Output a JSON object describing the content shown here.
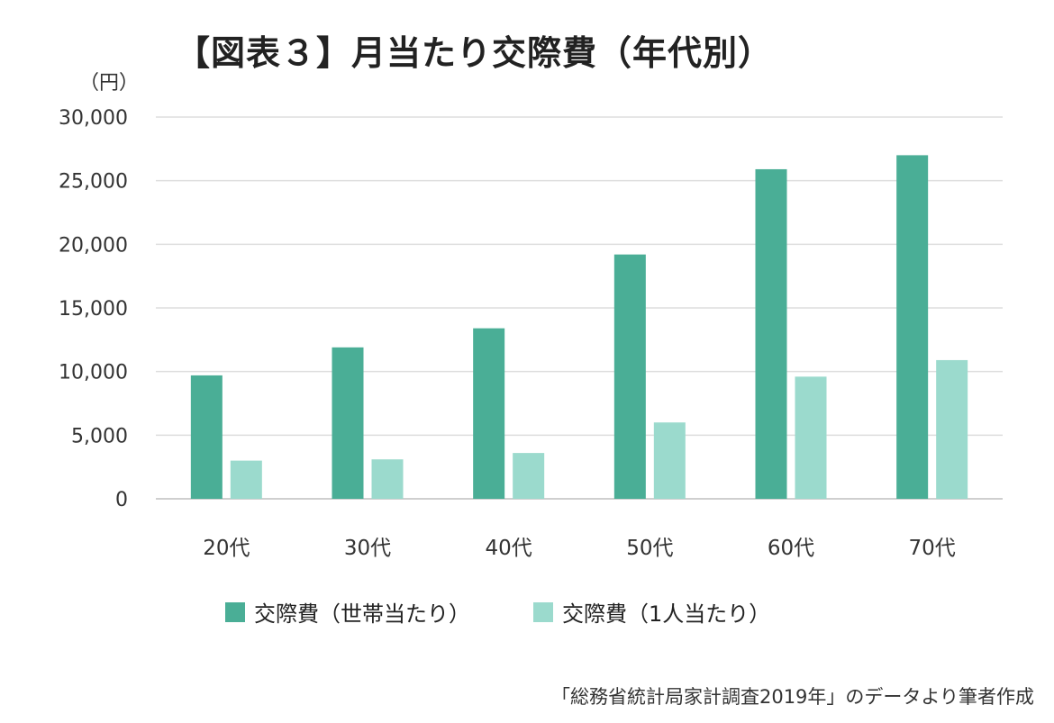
{
  "title": "【図表３】月当たり交際費（年代別）",
  "source": "「総務省統計局家計調査2019年」のデータより筆者作成",
  "chart_data": {
    "type": "bar",
    "unit_label": "（円）",
    "categories": [
      "20代",
      "30代",
      "40代",
      "50代",
      "60代",
      "70代"
    ],
    "series": [
      {
        "name": "交際費（世帯当たり）",
        "values": [
          9700,
          11900,
          13400,
          19200,
          25900,
          27000
        ],
        "color": "#4aae96"
      },
      {
        "name": "交際費（1人当たり）",
        "values": [
          3000,
          3100,
          3600,
          6000,
          9600,
          10900
        ],
        "color": "#9bdacd"
      }
    ],
    "ylim": [
      0,
      30000
    ],
    "yticks": [
      0,
      5000,
      10000,
      15000,
      20000,
      25000,
      30000
    ],
    "ytick_labels": [
      "0",
      "5,000",
      "10,000",
      "15,000",
      "20,000",
      "25,000",
      "30,000"
    ],
    "grid": true,
    "legend_position": "bottom"
  }
}
